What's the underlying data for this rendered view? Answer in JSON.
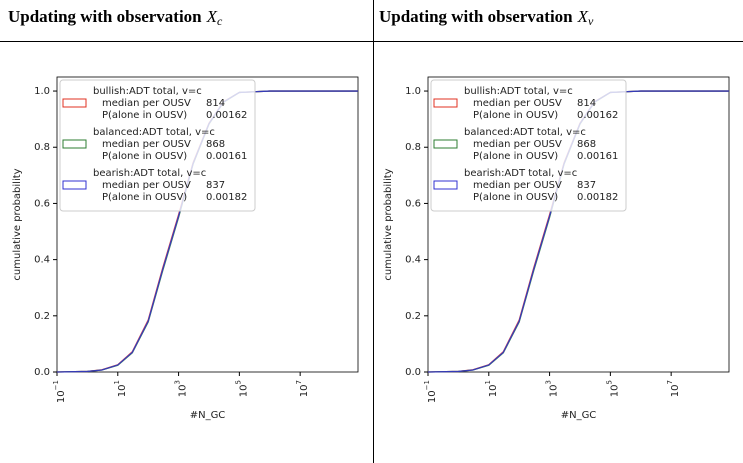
{
  "chart_data": [
    {
      "type": "line",
      "title": "Updating with observation",
      "title_var": "X",
      "title_sub": "c",
      "xlabel": "#N_GC",
      "ylabel": "cumulative probability",
      "xscale": "log",
      "xlim": [
        0.1,
        800000000
      ],
      "ylim": [
        0,
        1.05
      ],
      "xticks": [
        {
          "value": 0.1,
          "label": "10",
          "exponent": "−1"
        },
        {
          "value": 10,
          "label": "10",
          "exponent": "1"
        },
        {
          "value": 1000,
          "label": "10",
          "exponent": "3"
        },
        {
          "value": 100000,
          "label": "10",
          "exponent": "5"
        },
        {
          "value": 10000000,
          "label": "10",
          "exponent": "7"
        }
      ],
      "yticks": [
        {
          "value": 0,
          "label": "0.0"
        },
        {
          "value": 0.2,
          "label": "0.2"
        },
        {
          "value": 0.4,
          "label": "0.4"
        },
        {
          "value": 0.6,
          "label": "0.6"
        },
        {
          "value": 0.8,
          "label": "0.8"
        },
        {
          "value": 1,
          "label": "1.0"
        }
      ],
      "legend": "upper left",
      "x": [
        0.1,
        1,
        3,
        10,
        30,
        100,
        300,
        1000,
        3000,
        10000,
        30000,
        100000,
        1000000,
        800000000
      ],
      "series": [
        {
          "name": "bullish:ADT total, v=c",
          "color": "#e03020",
          "median_label": "median per OUSV",
          "median": 814,
          "p_label": "P(alone in OUSV)",
          "p_alone": 0.00162,
          "values": [
            0,
            0.002,
            0.008,
            0.026,
            0.072,
            0.185,
            0.37,
            0.56,
            0.745,
            0.885,
            0.962,
            0.995,
            1,
            1
          ]
        },
        {
          "name": "balanced:ADT total, v=c",
          "color": "#2e7d32",
          "median_label": "median per OUSV",
          "median": 868,
          "p_label": "P(alone in OUSV)",
          "p_alone": 0.00161,
          "values": [
            0,
            0.002,
            0.007,
            0.024,
            0.068,
            0.178,
            0.36,
            0.55,
            0.74,
            0.882,
            0.96,
            0.995,
            1,
            1
          ]
        },
        {
          "name": "bearish:ADT total, v=c",
          "color": "#3030d0",
          "median_label": "median per OUSV",
          "median": 837,
          "p_label": "P(alone in OUSV)",
          "p_alone": 0.00182,
          "values": [
            0,
            0.002,
            0.007,
            0.025,
            0.07,
            0.181,
            0.365,
            0.555,
            0.742,
            0.884,
            0.961,
            0.995,
            1,
            1
          ]
        }
      ]
    },
    {
      "type": "line",
      "title": "Updating with observation",
      "title_var": "X",
      "title_sub": "v",
      "xlabel": "#N_GC",
      "ylabel": "cumulative probability",
      "xscale": "log",
      "xlim": [
        0.1,
        800000000
      ],
      "ylim": [
        0,
        1.05
      ],
      "xticks": [
        {
          "value": 0.1,
          "label": "10",
          "exponent": "−1"
        },
        {
          "value": 10,
          "label": "10",
          "exponent": "1"
        },
        {
          "value": 1000,
          "label": "10",
          "exponent": "3"
        },
        {
          "value": 100000,
          "label": "10",
          "exponent": "5"
        },
        {
          "value": 10000000,
          "label": "10",
          "exponent": "7"
        }
      ],
      "yticks": [
        {
          "value": 0,
          "label": "0.0"
        },
        {
          "value": 0.2,
          "label": "0.2"
        },
        {
          "value": 0.4,
          "label": "0.4"
        },
        {
          "value": 0.6,
          "label": "0.6"
        },
        {
          "value": 0.8,
          "label": "0.8"
        },
        {
          "value": 1,
          "label": "1.0"
        }
      ],
      "legend": "upper left",
      "x": [
        0.1,
        1,
        3,
        10,
        30,
        100,
        300,
        1000,
        3000,
        10000,
        30000,
        100000,
        1000000,
        800000000
      ],
      "series": [
        {
          "name": "bullish:ADT total, v=c",
          "color": "#e03020",
          "median_label": "median per OUSV",
          "median": 814,
          "p_label": "P(alone in OUSV)",
          "p_alone": 0.00162,
          "values": [
            0,
            0.002,
            0.008,
            0.026,
            0.072,
            0.185,
            0.37,
            0.56,
            0.745,
            0.885,
            0.962,
            0.995,
            1,
            1
          ]
        },
        {
          "name": "balanced:ADT total, v=c",
          "color": "#2e7d32",
          "median_label": "median per OUSV",
          "median": 868,
          "p_label": "P(alone in OUSV)",
          "p_alone": 0.00161,
          "values": [
            0,
            0.002,
            0.007,
            0.024,
            0.068,
            0.178,
            0.36,
            0.55,
            0.74,
            0.882,
            0.96,
            0.995,
            1,
            1
          ]
        },
        {
          "name": "bearish:ADT total, v=c",
          "color": "#3030d0",
          "median_label": "median per OUSV",
          "median": 837,
          "p_label": "P(alone in OUSV)",
          "p_alone": 0.00182,
          "values": [
            0,
            0.002,
            0.007,
            0.025,
            0.07,
            0.181,
            0.365,
            0.555,
            0.742,
            0.884,
            0.961,
            0.995,
            1,
            1
          ]
        }
      ]
    }
  ]
}
